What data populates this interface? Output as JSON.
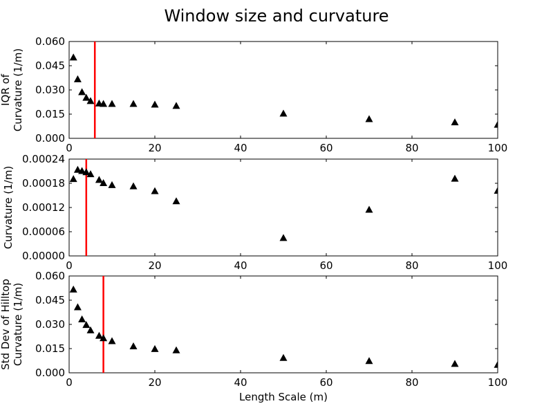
{
  "figure": {
    "title": "Window size and curvature"
  },
  "chart_data": [
    {
      "type": "scatter",
      "ylabel": [
        "IQR of",
        "Curvature (1/m)"
      ],
      "xlabel": "",
      "xlim": [
        0,
        100
      ],
      "ylim": [
        0,
        0.06
      ],
      "xticks": [
        0,
        20,
        40,
        60,
        80,
        100
      ],
      "xtick_labels": [
        "0",
        "20",
        "40",
        "60",
        "80",
        "100"
      ],
      "yticks": [
        0,
        0.015,
        0.03,
        0.045,
        0.06
      ],
      "ytick_labels": [
        "0.000",
        "0.015",
        "0.030",
        "0.045",
        "0.060"
      ],
      "marker": "triangle",
      "marker_color": "#000000",
      "vline": {
        "x": 6,
        "color": "#ff0000"
      },
      "series": [
        {
          "x": [
            1,
            2,
            3,
            4,
            5,
            7,
            8,
            10,
            15,
            20,
            25,
            50,
            70,
            90,
            100
          ],
          "y": [
            0.05,
            0.0365,
            0.0285,
            0.025,
            0.023,
            0.0215,
            0.0212,
            0.0212,
            0.0212,
            0.0208,
            0.02,
            0.0152,
            0.0118,
            0.0098,
            0.0083
          ]
        }
      ]
    },
    {
      "type": "scatter",
      "ylabel": [
        "Curvature (1/m)"
      ],
      "xlabel": "",
      "xlim": [
        0,
        100
      ],
      "ylim": [
        0,
        0.00024
      ],
      "xticks": [
        0,
        20,
        40,
        60,
        80,
        100
      ],
      "xtick_labels": [
        "0",
        "20",
        "40",
        "60",
        "80",
        "100"
      ],
      "yticks": [
        0,
        6e-05,
        0.00012,
        0.00018,
        0.00024
      ],
      "ytick_labels": [
        "0.00000",
        "0.00006",
        "0.00012",
        "0.00018",
        "0.00024"
      ],
      "marker": "triangle",
      "marker_color": "#000000",
      "vline": {
        "x": 4,
        "color": "#ff0000"
      },
      "series": [
        {
          "x": [
            1,
            2,
            3,
            4,
            5,
            7,
            8,
            10,
            15,
            20,
            25,
            50,
            70,
            90,
            100
          ],
          "y": [
            0.00019,
            0.000213,
            0.00021,
            0.000207,
            0.000202,
            0.000188,
            0.00018,
            0.000175,
            0.000172,
            0.00016,
            0.000135,
            4.4e-05,
            0.000114,
            0.000191,
            0.000161
          ]
        }
      ]
    },
    {
      "type": "scatter",
      "ylabel": [
        "Std Dev of Hilltop",
        "Curvature (1/m)"
      ],
      "xlabel": "Length Scale (m)",
      "xlim": [
        0,
        100
      ],
      "ylim": [
        0,
        0.06
      ],
      "xticks": [
        0,
        20,
        40,
        60,
        80,
        100
      ],
      "xtick_labels": [
        "0",
        "20",
        "40",
        "60",
        "80",
        "100"
      ],
      "yticks": [
        0,
        0.015,
        0.03,
        0.045,
        0.06
      ],
      "ytick_labels": [
        "0.000",
        "0.015",
        "0.030",
        "0.045",
        "0.060"
      ],
      "marker": "triangle",
      "marker_color": "#000000",
      "vline": {
        "x": 8,
        "color": "#ff0000"
      },
      "series": [
        {
          "x": [
            1,
            2,
            3,
            4,
            5,
            7,
            8,
            10,
            15,
            20,
            25,
            50,
            70,
            90,
            100
          ],
          "y": [
            0.0515,
            0.0405,
            0.033,
            0.0295,
            0.0262,
            0.0228,
            0.0213,
            0.0195,
            0.0163,
            0.0146,
            0.0138,
            0.0091,
            0.0072,
            0.0054,
            0.0048
          ]
        }
      ]
    }
  ]
}
